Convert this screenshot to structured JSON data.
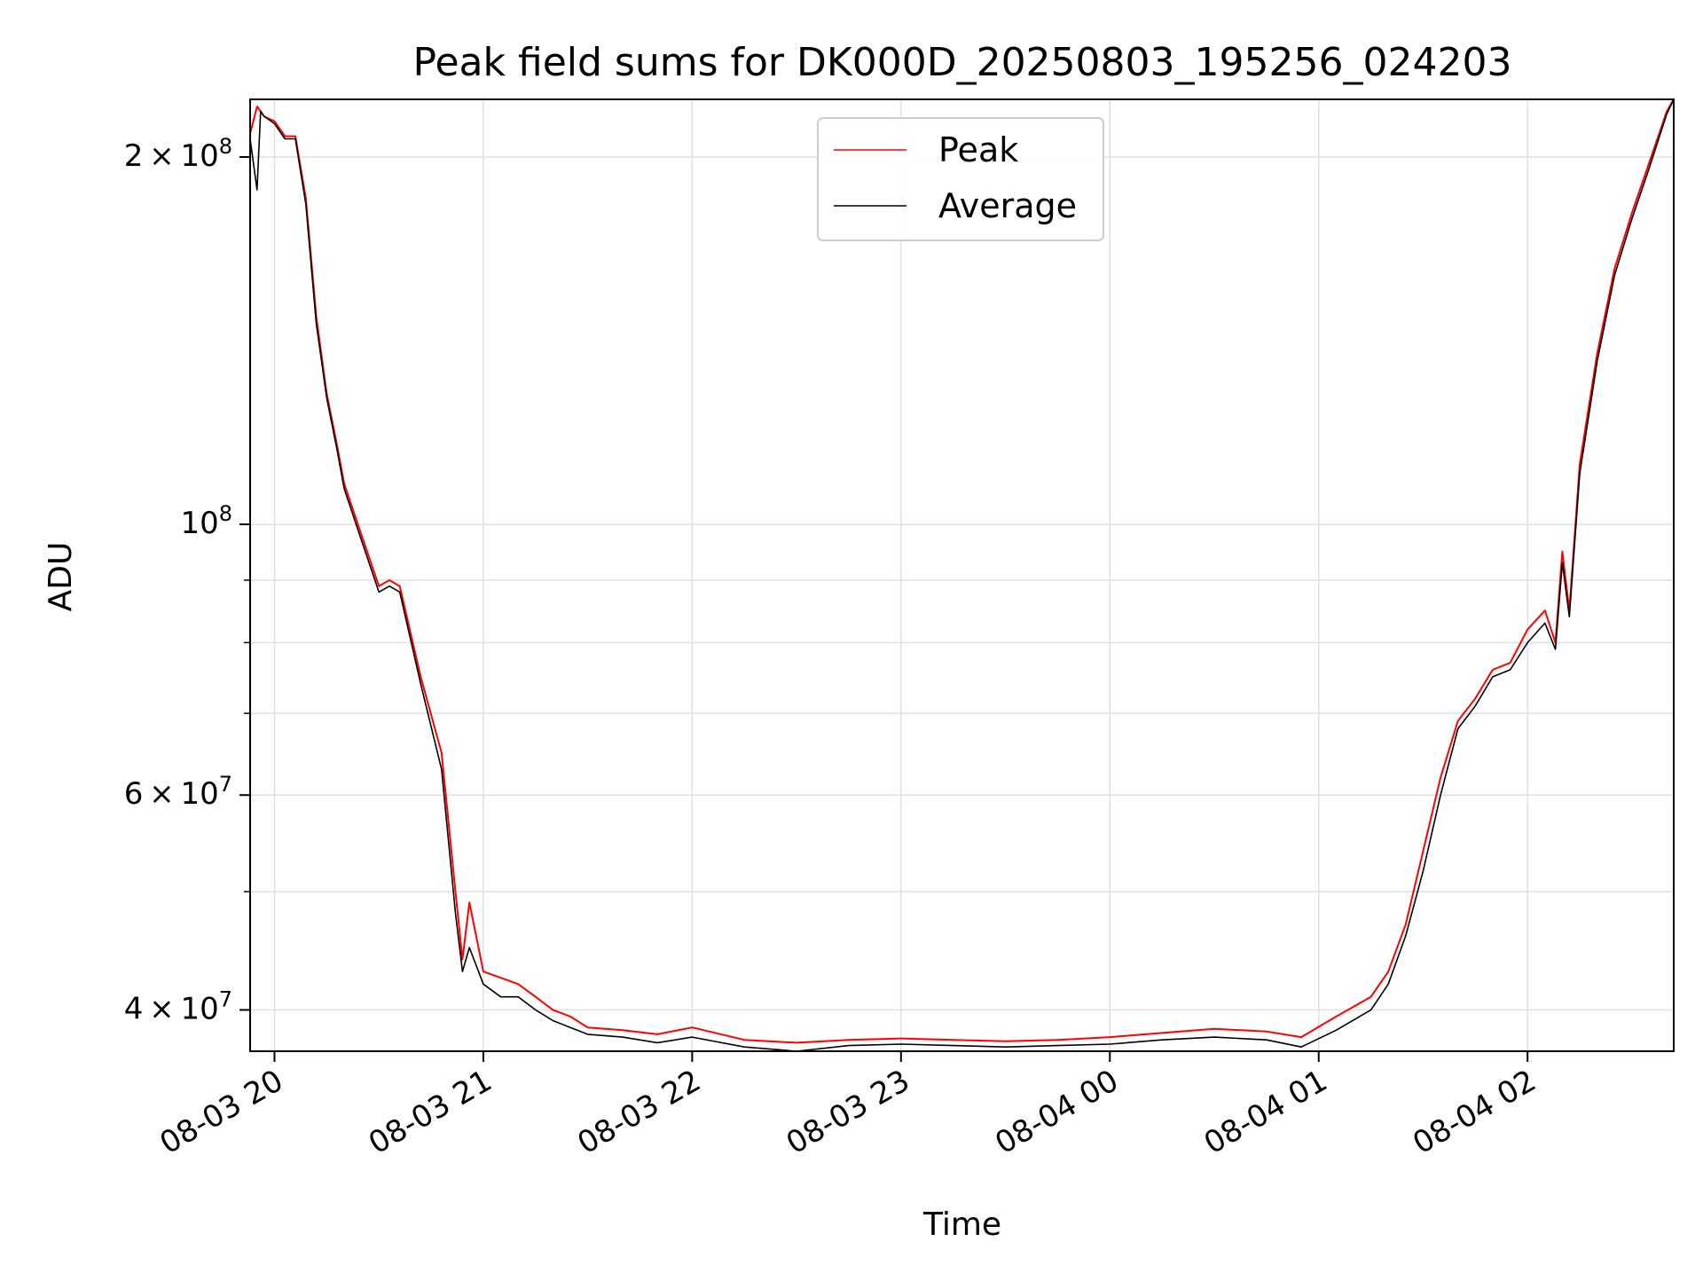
{
  "chart_data": {
    "type": "line",
    "title": "Peak field sums for DK000D_20250803_195256_024203",
    "xlabel": "Time",
    "ylabel": "ADU",
    "y_scale": "log",
    "xlim": [
      "2025-08-03 19:53",
      "2025-08-04 02:42"
    ],
    "ylim": [
      37000000,
      223000000
    ],
    "grid": true,
    "legend_position": "top-center",
    "x_ticks": [
      {
        "value": "2025-08-03 20:00",
        "label": "08-03 20"
      },
      {
        "value": "2025-08-03 21:00",
        "label": "08-03 21"
      },
      {
        "value": "2025-08-03 22:00",
        "label": "08-03 22"
      },
      {
        "value": "2025-08-03 23:00",
        "label": "08-03 23"
      },
      {
        "value": "2025-08-04 00:00",
        "label": "08-04 00"
      },
      {
        "value": "2025-08-04 01:00",
        "label": "08-04 01"
      },
      {
        "value": "2025-08-04 02:00",
        "label": "08-04 02"
      }
    ],
    "y_ticks": [
      {
        "value": 40000000,
        "mantissa": "4",
        "base": "10",
        "exp": "7"
      },
      {
        "value": 60000000,
        "mantissa": "6",
        "base": "10",
        "exp": "7"
      },
      {
        "value": 100000000,
        "mantissa": "",
        "base": "10",
        "exp": "8"
      },
      {
        "value": 200000000,
        "mantissa": "2",
        "base": "10",
        "exp": "8"
      }
    ],
    "y_minor_ticks": [
      50000000,
      70000000,
      80000000,
      90000000
    ],
    "series": [
      {
        "name": "Peak",
        "color": "#ff0000",
        "x": [
          "2025-08-03 19:53",
          "2025-08-03 19:55",
          "2025-08-03 19:56",
          "2025-08-03 19:57",
          "2025-08-03 20:00",
          "2025-08-03 20:03",
          "2025-08-03 20:06",
          "2025-08-03 20:09",
          "2025-08-03 20:12",
          "2025-08-03 20:15",
          "2025-08-03 20:18",
          "2025-08-03 20:20",
          "2025-08-03 20:25",
          "2025-08-03 20:30",
          "2025-08-03 20:33",
          "2025-08-03 20:36",
          "2025-08-03 20:42",
          "2025-08-03 20:48",
          "2025-08-03 20:52",
          "2025-08-03 20:54",
          "2025-08-03 20:56",
          "2025-08-03 21:00",
          "2025-08-03 21:05",
          "2025-08-03 21:10",
          "2025-08-03 21:15",
          "2025-08-03 21:20",
          "2025-08-03 21:25",
          "2025-08-03 21:30",
          "2025-08-03 21:40",
          "2025-08-03 21:50",
          "2025-08-03 22:00",
          "2025-08-03 22:15",
          "2025-08-03 22:30",
          "2025-08-03 22:45",
          "2025-08-03 23:00",
          "2025-08-03 23:15",
          "2025-08-03 23:30",
          "2025-08-03 23:45",
          "2025-08-04 00:00",
          "2025-08-04 00:15",
          "2025-08-04 00:30",
          "2025-08-04 00:45",
          "2025-08-04 00:55",
          "2025-08-04 01:05",
          "2025-08-04 01:15",
          "2025-08-04 01:20",
          "2025-08-04 01:25",
          "2025-08-04 01:30",
          "2025-08-04 01:35",
          "2025-08-04 01:40",
          "2025-08-04 01:45",
          "2025-08-04 01:50",
          "2025-08-04 01:55",
          "2025-08-04 02:00",
          "2025-08-04 02:05",
          "2025-08-04 02:08",
          "2025-08-04 02:10",
          "2025-08-04 02:12",
          "2025-08-04 02:15",
          "2025-08-04 02:20",
          "2025-08-04 02:25",
          "2025-08-04 02:30",
          "2025-08-04 02:35",
          "2025-08-04 02:40",
          "2025-08-04 02:42"
        ],
        "values": [
          209000000,
          220000000,
          218000000,
          216000000,
          214000000,
          208000000,
          208000000,
          185000000,
          148000000,
          128000000,
          116000000,
          108000000,
          98000000,
          89000000,
          90000000,
          89000000,
          75000000,
          65000000,
          50000000,
          44000000,
          49000000,
          43000000,
          42500000,
          42000000,
          41000000,
          40000000,
          39500000,
          38700000,
          38500000,
          38200000,
          38700000,
          37800000,
          37600000,
          37800000,
          37900000,
          37800000,
          37700000,
          37800000,
          38000000,
          38300000,
          38600000,
          38400000,
          38000000,
          39500000,
          41000000,
          43000000,
          47000000,
          54000000,
          62000000,
          69000000,
          72000000,
          76000000,
          77000000,
          82000000,
          85000000,
          80000000,
          95000000,
          85000000,
          112000000,
          138000000,
          162000000,
          180000000,
          198000000,
          218000000,
          223000000
        ]
      },
      {
        "name": "Average",
        "color": "#000000",
        "x": [
          "2025-08-03 19:53",
          "2025-08-03 19:55",
          "2025-08-03 19:56",
          "2025-08-03 19:57",
          "2025-08-03 20:00",
          "2025-08-03 20:03",
          "2025-08-03 20:06",
          "2025-08-03 20:09",
          "2025-08-03 20:12",
          "2025-08-03 20:15",
          "2025-08-03 20:18",
          "2025-08-03 20:20",
          "2025-08-03 20:25",
          "2025-08-03 20:30",
          "2025-08-03 20:33",
          "2025-08-03 20:36",
          "2025-08-03 20:42",
          "2025-08-03 20:48",
          "2025-08-03 20:52",
          "2025-08-03 20:54",
          "2025-08-03 20:56",
          "2025-08-03 21:00",
          "2025-08-03 21:05",
          "2025-08-03 21:10",
          "2025-08-03 21:15",
          "2025-08-03 21:20",
          "2025-08-03 21:25",
          "2025-08-03 21:30",
          "2025-08-03 21:40",
          "2025-08-03 21:50",
          "2025-08-03 22:00",
          "2025-08-03 22:15",
          "2025-08-03 22:30",
          "2025-08-03 22:45",
          "2025-08-03 23:00",
          "2025-08-03 23:15",
          "2025-08-03 23:30",
          "2025-08-03 23:45",
          "2025-08-04 00:00",
          "2025-08-04 00:15",
          "2025-08-04 00:30",
          "2025-08-04 00:45",
          "2025-08-04 00:55",
          "2025-08-04 01:05",
          "2025-08-04 01:15",
          "2025-08-04 01:20",
          "2025-08-04 01:25",
          "2025-08-04 01:30",
          "2025-08-04 01:35",
          "2025-08-04 01:40",
          "2025-08-04 01:45",
          "2025-08-04 01:50",
          "2025-08-04 01:55",
          "2025-08-04 02:00",
          "2025-08-04 02:05",
          "2025-08-04 02:08",
          "2025-08-04 02:10",
          "2025-08-04 02:12",
          "2025-08-04 02:15",
          "2025-08-04 02:20",
          "2025-08-04 02:25",
          "2025-08-04 02:30",
          "2025-08-04 02:35",
          "2025-08-04 02:40",
          "2025-08-04 02:42"
        ],
        "values": [
          207000000,
          188000000,
          218000000,
          216000000,
          213000000,
          207000000,
          207000000,
          183000000,
          146000000,
          127000000,
          115000000,
          107000000,
          97000000,
          88000000,
          89000000,
          88000000,
          74000000,
          63000000,
          48000000,
          43000000,
          45000000,
          42000000,
          41000000,
          41000000,
          40000000,
          39200000,
          38700000,
          38200000,
          38000000,
          37600000,
          38000000,
          37300000,
          37000000,
          37400000,
          37500000,
          37400000,
          37300000,
          37400000,
          37500000,
          37800000,
          38000000,
          37800000,
          37300000,
          38500000,
          40000000,
          42000000,
          46000000,
          52000000,
          60000000,
          68000000,
          71000000,
          75000000,
          76000000,
          80000000,
          83000000,
          79000000,
          93000000,
          84000000,
          110000000,
          136000000,
          160000000,
          178000000,
          196000000,
          217000000,
          223000000
        ]
      }
    ]
  }
}
